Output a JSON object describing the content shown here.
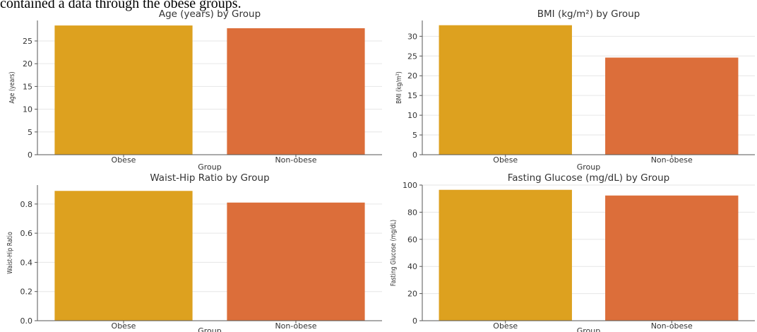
{
  "page_text": "contained a data through the obese groups.",
  "colors": {
    "obese": "#DDA11F",
    "non_obese": "#DC6E3A",
    "axis": "#555555",
    "grid": "#e6e6e6"
  },
  "chart_data": [
    {
      "type": "bar",
      "title": "Age (years) by Group",
      "xlabel": "Group",
      "ylabel": "Age (years)",
      "categories": [
        "Obese",
        "Non-obese"
      ],
      "values": [
        28.4,
        27.8
      ],
      "ylim": [
        0,
        29.5
      ],
      "yticks": [
        0,
        5,
        10,
        15,
        20,
        25
      ],
      "ytick_labels": [
        "0",
        "5",
        "10",
        "15",
        "20",
        "25"
      ],
      "grid": true
    },
    {
      "type": "bar",
      "title": "BMI (kg/m²) by Group",
      "xlabel": "Group",
      "ylabel": "BMI (kg/m²)",
      "categories": [
        "Obese",
        "Non-obese"
      ],
      "values": [
        32.8,
        24.6
      ],
      "ylim": [
        0,
        34
      ],
      "yticks": [
        0,
        5,
        10,
        15,
        20,
        25,
        30
      ],
      "ytick_labels": [
        "0",
        "5",
        "10",
        "15",
        "20",
        "25",
        "30"
      ],
      "grid": true
    },
    {
      "type": "bar",
      "title": "Waist-Hip Ratio by Group",
      "xlabel": "Group",
      "ylabel": "Waist-Hip Ratio",
      "categories": [
        "Obese",
        "Non-obese"
      ],
      "values": [
        0.89,
        0.81
      ],
      "ylim": [
        0,
        0.93
      ],
      "yticks": [
        0,
        0.2,
        0.4,
        0.6,
        0.8
      ],
      "ytick_labels": [
        "0.0",
        "0.2",
        "0.4",
        "0.6",
        "0.8"
      ],
      "grid": true
    },
    {
      "type": "bar",
      "title": "Fasting Glucose (mg/dL) by Group",
      "xlabel": "Group",
      "ylabel": "Fasting Glucose (mg/dL)",
      "categories": [
        "Obese",
        "Non-obese"
      ],
      "values": [
        96.5,
        92.3
      ],
      "ylim": [
        0,
        100
      ],
      "yticks": [
        0,
        20,
        40,
        60,
        80,
        100
      ],
      "ytick_labels": [
        "0",
        "20",
        "40",
        "60",
        "80",
        "100"
      ],
      "grid": true
    }
  ]
}
